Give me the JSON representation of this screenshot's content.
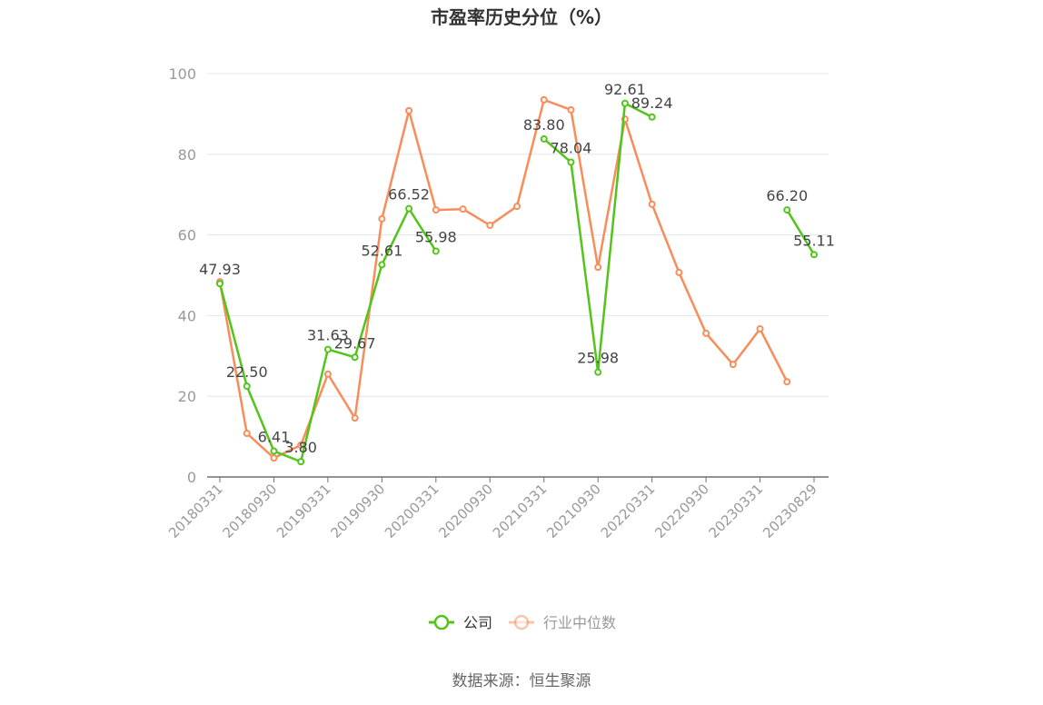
{
  "chart_data": {
    "type": "line",
    "title": "市盈率历史分位（%）",
    "source": "数据来源：恒生聚源",
    "x": [
      "20180331",
      "20180630",
      "20180930",
      "20181231",
      "20190331",
      "20190630",
      "20190930",
      "20191231",
      "20200331",
      "20200630",
      "20200930",
      "20201231",
      "20210331",
      "20210630",
      "20210930",
      "20211231",
      "20220331",
      "20220630",
      "20220930",
      "20221231",
      "20230331",
      "20230630",
      "20230829"
    ],
    "xtick_labels": [
      "20180331",
      "20180930",
      "20190331",
      "20190930",
      "20200331",
      "20200930",
      "20210331",
      "20210930",
      "20220331",
      "20220930",
      "20230331",
      "20230829"
    ],
    "ylim": [
      0,
      100
    ],
    "yticks": [
      0,
      20,
      40,
      60,
      80,
      100
    ],
    "grid": true,
    "legend_placement": "bottom",
    "series": [
      {
        "name": "公司",
        "color": "#52c41a",
        "labels": true,
        "values": [
          47.93,
          22.5,
          6.41,
          3.8,
          31.63,
          29.67,
          52.61,
          66.52,
          55.98,
          null,
          null,
          null,
          83.8,
          78.04,
          25.98,
          92.61,
          89.24,
          null,
          null,
          null,
          null,
          66.2,
          55.11
        ]
      },
      {
        "name": "行业中位数",
        "color": "#fa8c5a",
        "labels": false,
        "values": [
          48.4,
          10.8,
          4.7,
          7.9,
          25.5,
          14.6,
          64.0,
          90.8,
          66.2,
          66.4,
          62.4,
          67.1,
          93.5,
          91.0,
          52.0,
          88.7,
          67.6,
          50.7,
          35.6,
          27.9,
          36.7,
          23.6,
          null
        ]
      }
    ]
  }
}
